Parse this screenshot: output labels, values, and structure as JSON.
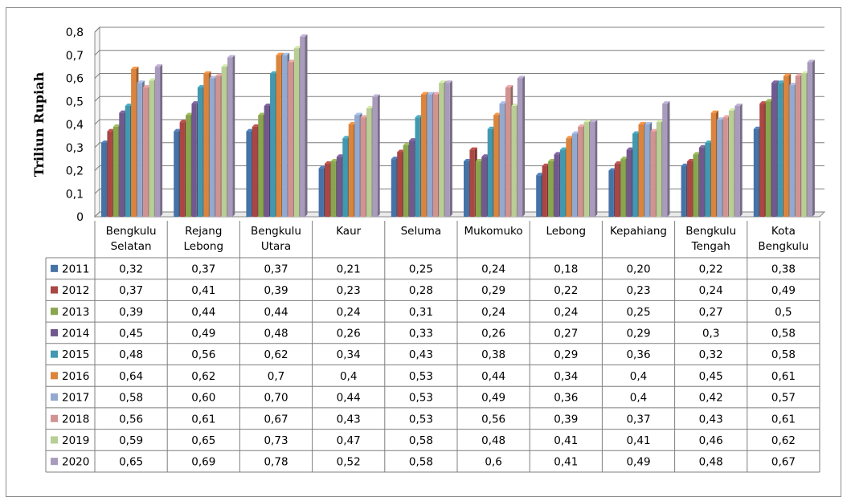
{
  "chart_data": {
    "type": "bar",
    "ylabel": "Triliun Rupiah",
    "ylim": [
      0,
      0.8
    ],
    "y_ticks": [
      "0",
      "0,1",
      "0,2",
      "0,3",
      "0,4",
      "0,5",
      "0,6",
      "0,7",
      "0,8"
    ],
    "categories": [
      [
        "Bengkulu",
        "Selatan"
      ],
      [
        "Rejang",
        "Lebong"
      ],
      [
        "Bengkulu",
        "Utara"
      ],
      [
        "Kaur"
      ],
      [
        "Seluma"
      ],
      [
        "Mukomuko"
      ],
      [
        "Lebong"
      ],
      [
        "Kepahiang"
      ],
      [
        "Bengkulu",
        "Tengah"
      ],
      [
        "Kota",
        "Bengkulu"
      ]
    ],
    "series": [
      {
        "name": "2011",
        "color": "#4572A7",
        "values": [
          0.32,
          0.37,
          0.37,
          0.21,
          0.25,
          0.24,
          0.18,
          0.2,
          0.22,
          0.38
        ],
        "labels": [
          "0,32",
          "0,37",
          "0,37",
          "0,21",
          "0,25",
          "0,24",
          "0,18",
          "0,20",
          "0,22",
          "0,38"
        ]
      },
      {
        "name": "2012",
        "color": "#AA4643",
        "values": [
          0.37,
          0.41,
          0.39,
          0.23,
          0.28,
          0.29,
          0.22,
          0.23,
          0.24,
          0.49
        ],
        "labels": [
          "0,37",
          "0,41",
          "0,39",
          "0,23",
          "0,28",
          "0,29",
          "0,22",
          "0,23",
          "0,24",
          "0,49"
        ]
      },
      {
        "name": "2013",
        "color": "#89A54E",
        "values": [
          0.39,
          0.44,
          0.44,
          0.24,
          0.31,
          0.24,
          0.24,
          0.25,
          0.27,
          0.5
        ],
        "labels": [
          "0,39",
          "0,44",
          "0,44",
          "0,24",
          "0,31",
          "0,24",
          "0,24",
          "0,25",
          "0,27",
          "0,5"
        ]
      },
      {
        "name": "2014",
        "color": "#71588F",
        "values": [
          0.45,
          0.49,
          0.48,
          0.26,
          0.33,
          0.26,
          0.27,
          0.29,
          0.3,
          0.58
        ],
        "labels": [
          "0,45",
          "0,49",
          "0,48",
          "0,26",
          "0,33",
          "0,26",
          "0,27",
          "0,29",
          "0,3",
          "0,58"
        ]
      },
      {
        "name": "2015",
        "color": "#4198AF",
        "values": [
          0.48,
          0.56,
          0.62,
          0.34,
          0.43,
          0.38,
          0.29,
          0.36,
          0.32,
          0.58
        ],
        "labels": [
          "0,48",
          "0,56",
          "0,62",
          "0,34",
          "0,43",
          "0,38",
          "0,29",
          "0,36",
          "0,32",
          "0,58"
        ]
      },
      {
        "name": "2016",
        "color": "#DB843D",
        "values": [
          0.64,
          0.62,
          0.7,
          0.4,
          0.53,
          0.44,
          0.34,
          0.4,
          0.45,
          0.61
        ],
        "labels": [
          "0,64",
          "0,62",
          "0,7",
          "0,4",
          "0,53",
          "0,44",
          "0,34",
          "0,4",
          "0,45",
          "0,61"
        ]
      },
      {
        "name": "2017",
        "color": "#93A9CF",
        "values": [
          0.58,
          0.6,
          0.7,
          0.44,
          0.53,
          0.49,
          0.36,
          0.4,
          0.42,
          0.57
        ],
        "labels": [
          "0,58",
          "0,60",
          "0,70",
          "0,44",
          "0,53",
          "0,49",
          "0,36",
          "0,4",
          "0,42",
          "0,57"
        ]
      },
      {
        "name": "2018",
        "color": "#D19392",
        "values": [
          0.56,
          0.61,
          0.67,
          0.43,
          0.53,
          0.56,
          0.39,
          0.37,
          0.43,
          0.61
        ],
        "labels": [
          "0,56",
          "0,61",
          "0,67",
          "0,43",
          "0,53",
          "0,56",
          "0,39",
          "0,37",
          "0,43",
          "0,61"
        ]
      },
      {
        "name": "2019",
        "color": "#B9CD96",
        "values": [
          0.59,
          0.65,
          0.73,
          0.47,
          0.58,
          0.48,
          0.41,
          0.41,
          0.46,
          0.62
        ],
        "labels": [
          "0,59",
          "0,65",
          "0,73",
          "0,47",
          "0,58",
          "0,48",
          "0,41",
          "0,41",
          "0,46",
          "0,62"
        ]
      },
      {
        "name": "2020",
        "color": "#A99BBD",
        "values": [
          0.65,
          0.69,
          0.78,
          0.52,
          0.58,
          0.6,
          0.41,
          0.49,
          0.48,
          0.67
        ],
        "labels": [
          "0,65",
          "0,69",
          "0,78",
          "0,52",
          "0,58",
          "0,6",
          "0,41",
          "0,49",
          "0,48",
          "0,67"
        ]
      }
    ],
    "legend": "data-table-left",
    "grid": true
  }
}
